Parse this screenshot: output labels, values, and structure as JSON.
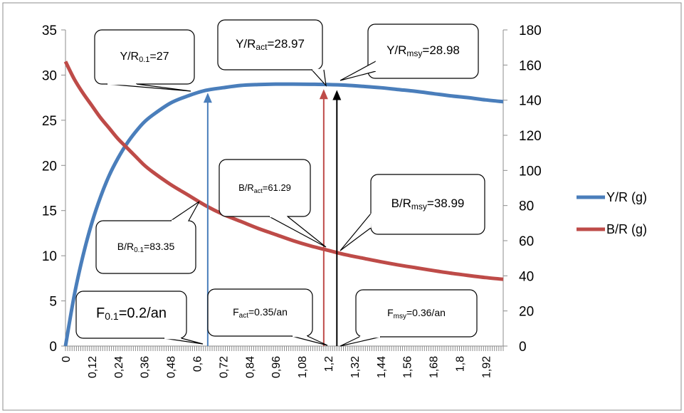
{
  "chart_data": {
    "type": "line",
    "title": "",
    "xlabel": "",
    "ylabel_left": "",
    "ylabel_right": "",
    "x_ticks": [
      "0",
      "0,12",
      "0,24",
      "0,36",
      "0,48",
      "0,6",
      "0,72",
      "0,84",
      "0,96",
      "1,08",
      "1,2",
      "1,32",
      "1,44",
      "1,56",
      "1,68",
      "1,8",
      "1,92"
    ],
    "xlim": [
      0,
      2.0
    ],
    "ylim_left": [
      0,
      35
    ],
    "ylim_right": [
      0,
      180
    ],
    "y_ticks_left": [
      "0",
      "5",
      "10",
      "15",
      "20",
      "25",
      "30",
      "35"
    ],
    "y_ticks_right": [
      "0",
      "20",
      "40",
      "60",
      "80",
      "100",
      "120",
      "140",
      "160",
      "180"
    ],
    "grid": false,
    "legend_position": "right",
    "colors": {
      "yr": "#4a7ebb",
      "br": "#be4b48",
      "msy": "#000000"
    },
    "series": [
      {
        "name": "Y/R (g)",
        "axis": "left",
        "x": [
          0,
          0.04,
          0.08,
          0.12,
          0.16,
          0.2,
          0.24,
          0.28,
          0.32,
          0.36,
          0.4,
          0.48,
          0.56,
          0.64,
          0.72,
          0.8,
          0.88,
          0.96,
          1.04,
          1.12,
          1.2,
          1.28,
          1.36,
          1.44,
          1.52,
          1.6,
          1.68,
          1.76,
          1.84,
          1.92,
          2.0
        ],
        "y": [
          0,
          5.6,
          10.0,
          13.6,
          16.5,
          18.9,
          20.8,
          22.4,
          23.7,
          24.8,
          25.6,
          26.9,
          27.7,
          28.3,
          28.6,
          28.85,
          28.95,
          29.0,
          29.0,
          28.98,
          28.95,
          28.88,
          28.75,
          28.6,
          28.4,
          28.2,
          27.95,
          27.7,
          27.5,
          27.25,
          27.05
        ]
      },
      {
        "name": "B/R (g)",
        "axis": "right",
        "x": [
          0,
          0.04,
          0.08,
          0.12,
          0.16,
          0.2,
          0.24,
          0.28,
          0.32,
          0.36,
          0.4,
          0.48,
          0.56,
          0.64,
          0.72,
          0.8,
          0.88,
          0.96,
          1.04,
          1.12,
          1.2,
          1.28,
          1.36,
          1.44,
          1.52,
          1.6,
          1.68,
          1.76,
          1.84,
          1.92,
          2.0
        ],
        "y": [
          162,
          152,
          144,
          137,
          130,
          124,
          118,
          113,
          108,
          103,
          99,
          92,
          86,
          80,
          75,
          71,
          67,
          63.5,
          60,
          57,
          54.5,
          52,
          50,
          48,
          46.2,
          44.6,
          43,
          41.5,
          40.2,
          39,
          38
        ]
      }
    ],
    "markers": [
      {
        "x": 0.65,
        "y_left": 28.2,
        "color": "#4a7ebb",
        "label": "F0.1"
      },
      {
        "x": 1.18,
        "y_left": 28.6,
        "color": "#be4b48",
        "label": "Fact"
      },
      {
        "x": 1.24,
        "y_left": 28.5,
        "color": "#000000",
        "label": "Fmsy"
      }
    ],
    "annotations": [
      {
        "id": "yr01",
        "main": "Y/R",
        "sub": "0.1",
        "rest": "=27"
      },
      {
        "id": "yract",
        "main": "Y/R",
        "sub": "act",
        "rest": "=28.97"
      },
      {
        "id": "yrmsy",
        "main": "Y/R",
        "sub": "msy",
        "rest": "=28.98"
      },
      {
        "id": "bract",
        "main": "B/R",
        "sub": "act",
        "rest": "=61.29"
      },
      {
        "id": "brmsy",
        "main": "B/R",
        "sub": "msy",
        "rest": "=38.99"
      },
      {
        "id": "br01",
        "main": "B/R",
        "sub": "0.1",
        "rest": "=83.35"
      },
      {
        "id": "f01",
        "main": "F",
        "sub": "0.1",
        "rest": "=0.2/an"
      },
      {
        "id": "fact",
        "main": "F",
        "sub": "act",
        "rest": "=0.35/an"
      },
      {
        "id": "fmsy",
        "main": "F",
        "sub": "msy",
        "rest": "=0.36/an"
      }
    ]
  }
}
